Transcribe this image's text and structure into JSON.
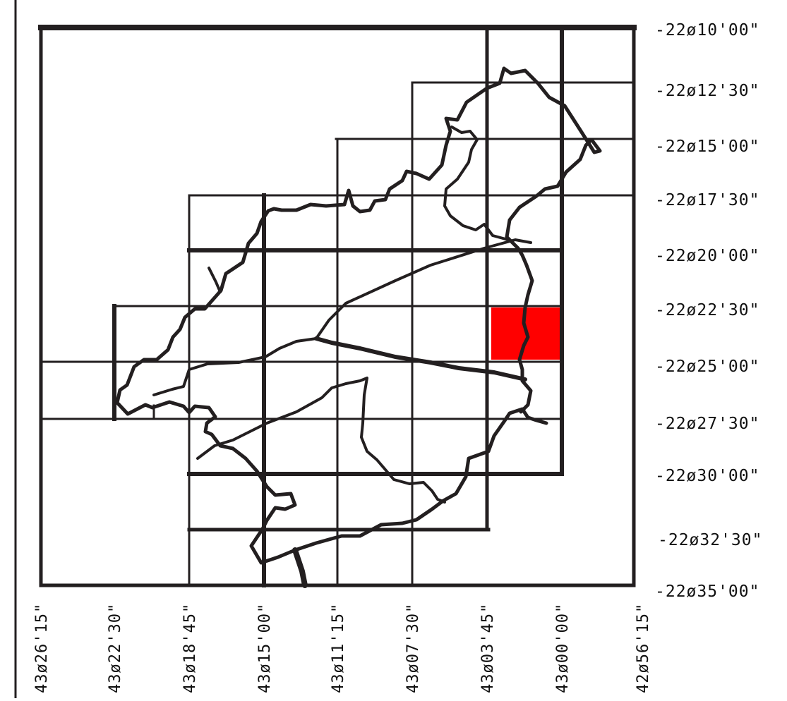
{
  "map": {
    "highlight_color": "#ff0000",
    "line_color": "#231f20",
    "latitude_labels": [
      "-22ø10'00\"",
      "-22ø12'30\"",
      "-22ø15'00\"",
      "-22ø17'30\"",
      "-22ø20'00\"",
      "-22ø22'30\"",
      "-22ø25'00\"",
      "-22ø27'30\"",
      "-22ø30'00\"",
      "-22ø32'30\"",
      "-22ø35'00\""
    ],
    "longitude_labels": [
      "43ø26'15\"",
      "43ø22'30\"",
      "43ø18'45\"",
      "43ø15'00\"",
      "43ø11'15\"",
      "43ø07'30\"",
      "43ø03'45\"",
      "43ø00'00\"",
      "42ø56'15\""
    ],
    "highlighted_cell": {
      "lon_from": "43ø03'45\"",
      "lon_to": "43ø00'00\"",
      "lat_from": "-22ø22'30\"",
      "lat_to": "-22ø25'00\""
    }
  }
}
